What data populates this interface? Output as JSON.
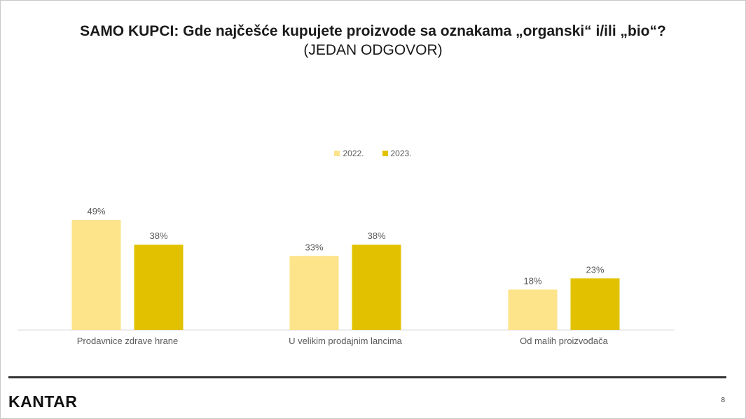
{
  "slide": {
    "title": "SAMO KUPCI: Gde najčešće kupujete proizvode sa oznakama „organski“ i/ili „bio“?",
    "subtitle": "(JEDAN ODGOVOR)",
    "logo_text": "KANTAR",
    "page_number": "8"
  },
  "colors": {
    "series_2022": "#fde38a",
    "series_2023": "#e2c200",
    "axis": "#d9d9d9",
    "label": "#595959"
  },
  "chart_data": {
    "type": "bar",
    "title": "SAMO KUPCI: Gde najčešće kupujete proizvode sa oznakama „organski“ i/ili „bio“?",
    "subtitle": "(JEDAN ODGOVOR)",
    "categories": [
      "Prodavnice zdrave hrane",
      "U velikim prodajnim lancima",
      "Od malih proizvođača"
    ],
    "series": [
      {
        "name": "2022.",
        "values": [
          49,
          33,
          18
        ],
        "labels": [
          "49%",
          "33%",
          "18%"
        ]
      },
      {
        "name": "2023.",
        "values": [
          38,
          38,
          23
        ],
        "labels": [
          "38%",
          "38%",
          "23%"
        ]
      }
    ],
    "ylim": [
      0,
      49
    ],
    "unit": "%",
    "legend_position": "top-center",
    "grid": false
  }
}
